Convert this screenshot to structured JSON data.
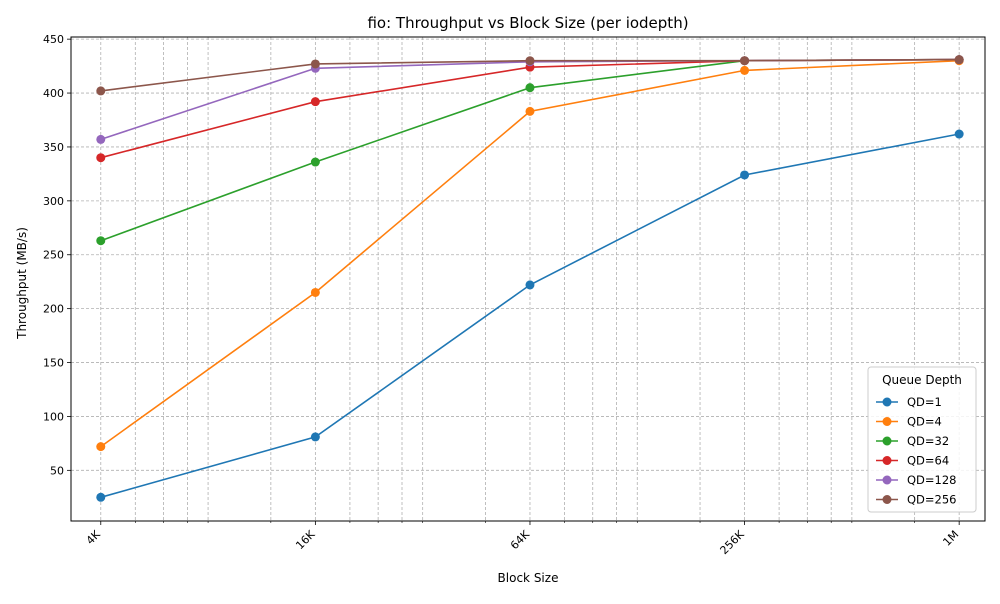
{
  "chart_data": {
    "type": "line",
    "title": "fio: Throughput vs Block Size (per iodepth)",
    "xlabel": "Block Size",
    "ylabel": "Throughput (MB/s)",
    "x_scale": "log2",
    "categories": [
      "4K",
      "16K",
      "64K",
      "256K",
      "1M"
    ],
    "x_values_kb": [
      4,
      16,
      64,
      256,
      1024
    ],
    "xlim_kb": [
      3.3,
      1210
    ],
    "ylim": [
      3,
      452
    ],
    "yticks": [
      50,
      100,
      150,
      200,
      250,
      300,
      350,
      400,
      450
    ],
    "grid": true,
    "legend_title": "Queue Depth",
    "legend_position": "lower right",
    "series": [
      {
        "name": "QD=1",
        "color": "#1f77b4",
        "values": [
          25,
          81,
          222,
          324,
          362
        ]
      },
      {
        "name": "QD=4",
        "color": "#ff7f0e",
        "values": [
          72,
          215,
          383,
          421,
          430
        ]
      },
      {
        "name": "QD=32",
        "color": "#2ca02c",
        "values": [
          263,
          336,
          405,
          430,
          431
        ]
      },
      {
        "name": "QD=64",
        "color": "#d62728",
        "values": [
          340,
          392,
          424,
          430,
          431
        ]
      },
      {
        "name": "QD=128",
        "color": "#9467bd",
        "values": [
          357,
          423,
          429,
          430,
          431
        ]
      },
      {
        "name": "QD=256",
        "color": "#8c564b",
        "values": [
          402,
          427,
          430,
          430,
          431
        ]
      }
    ]
  }
}
